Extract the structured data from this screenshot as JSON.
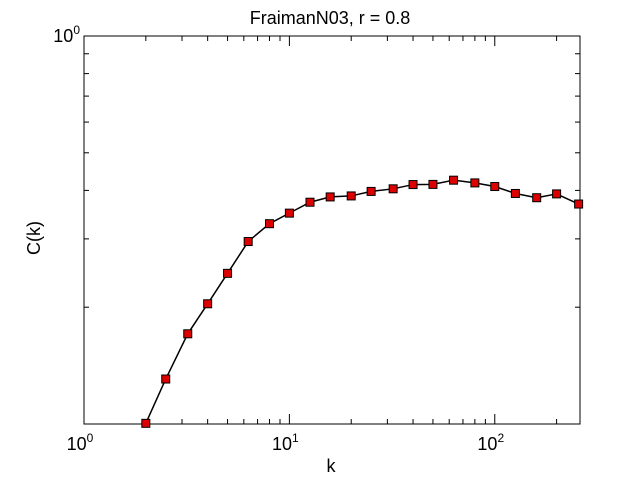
{
  "chart_data": {
    "type": "line",
    "title": "FraimanN03, r = 0.8",
    "xlabel": "k",
    "ylabel": "C(k)",
    "xscale": "log",
    "yscale": "log",
    "xlim": [
      1,
      260
    ],
    "ylim": [
      0.1,
      1
    ],
    "grid": false,
    "x_ticks": [
      {
        "base": "10",
        "exp": "0"
      },
      {
        "base": "10",
        "exp": "1"
      },
      {
        "base": "10",
        "exp": "2"
      }
    ],
    "y_ticks": [
      {
        "base": "10",
        "exp": "0"
      }
    ],
    "marker": "square",
    "marker_color": "#dd0000",
    "line_color": "#000000",
    "series": [
      {
        "x": [
          2,
          2.5,
          3.2,
          4,
          5,
          6.3,
          8,
          10,
          12.6,
          15.8,
          20,
          25,
          32,
          40,
          50,
          63,
          80,
          100,
          126,
          160,
          200,
          256
        ],
        "y": [
          0.1004,
          0.1306,
          0.1708,
          0.2041,
          0.2445,
          0.2953,
          0.3283,
          0.3495,
          0.3729,
          0.3848,
          0.3871,
          0.3976,
          0.4038,
          0.4141,
          0.4145,
          0.425,
          0.4182,
          0.4093,
          0.3928,
          0.383,
          0.3918,
          0.3689
        ]
      }
    ]
  }
}
